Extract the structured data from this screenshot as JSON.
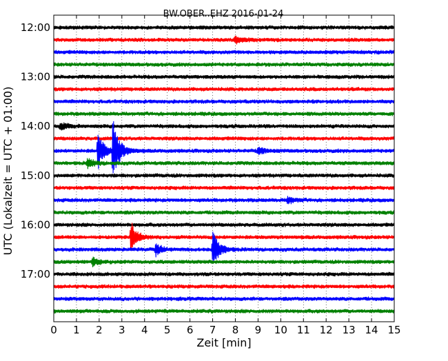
{
  "chart_data": {
    "type": "line",
    "title": "BW.OBER..EHZ 2016-01-24",
    "xlabel": "Zeit  [min]",
    "ylabel": "UTC (Lokalzeit = UTC + 01:00)",
    "xlim": [
      0,
      15
    ],
    "xticks": [
      "0",
      "1",
      "2",
      "3",
      "4",
      "5",
      "6",
      "7",
      "8",
      "9",
      "10",
      "11",
      "12",
      "13",
      "14",
      "15"
    ],
    "yticks": [
      "12:00",
      "13:00",
      "14:00",
      "15:00",
      "16:00",
      "17:00"
    ],
    "grid": "vertical dotted at each minute",
    "trace_colors": [
      "#000000",
      "#ff0000",
      "#0000ff",
      "#008000"
    ],
    "traces": [
      {
        "start": "12:00",
        "events": []
      },
      {
        "start": "12:15",
        "events": [
          {
            "t": 8.0,
            "amp": 6
          }
        ]
      },
      {
        "start": "12:30",
        "events": []
      },
      {
        "start": "12:45",
        "events": []
      },
      {
        "start": "13:00",
        "events": []
      },
      {
        "start": "13:15",
        "events": []
      },
      {
        "start": "13:30",
        "events": []
      },
      {
        "start": "13:45",
        "events": []
      },
      {
        "start": "14:00",
        "events": [
          {
            "t": 0.3,
            "amp": 5
          }
        ]
      },
      {
        "start": "14:15",
        "events": []
      },
      {
        "start": "14:30",
        "events": [
          {
            "t": 1.95,
            "amp": 26
          },
          {
            "t": 2.6,
            "amp": 46
          },
          {
            "t": 9.0,
            "amp": 5
          }
        ]
      },
      {
        "start": "14:45",
        "events": [
          {
            "t": 1.5,
            "amp": 7
          }
        ]
      },
      {
        "start": "15:00",
        "events": []
      },
      {
        "start": "15:15",
        "events": []
      },
      {
        "start": "15:30",
        "events": [
          {
            "t": 10.3,
            "amp": 5
          }
        ]
      },
      {
        "start": "15:45",
        "events": []
      },
      {
        "start": "16:00",
        "events": []
      },
      {
        "start": "16:15",
        "events": [
          {
            "t": 3.4,
            "amp": 22
          }
        ]
      },
      {
        "start": "16:30",
        "events": [
          {
            "t": 4.5,
            "amp": 8
          },
          {
            "t": 7.0,
            "amp": 28
          }
        ]
      },
      {
        "start": "16:45",
        "events": [
          {
            "t": 1.7,
            "amp": 6
          }
        ]
      },
      {
        "start": "17:00",
        "events": []
      },
      {
        "start": "17:15",
        "events": []
      },
      {
        "start": "17:30",
        "events": []
      },
      {
        "start": "17:45",
        "events": []
      }
    ]
  }
}
